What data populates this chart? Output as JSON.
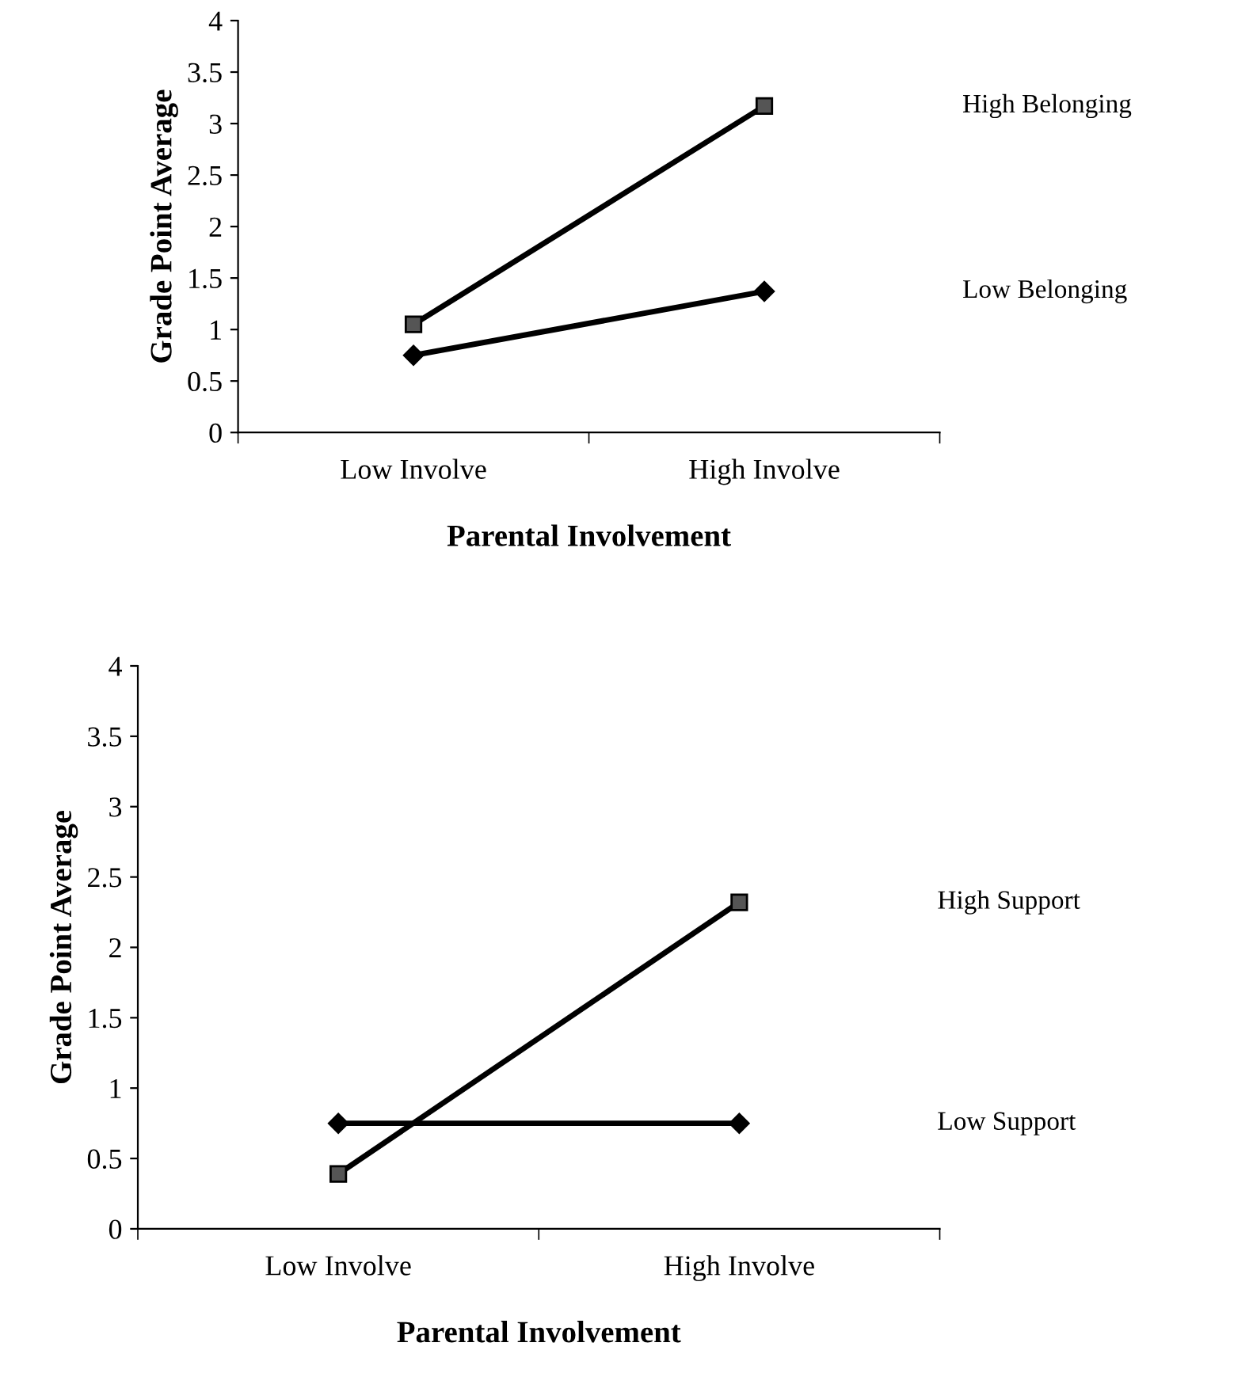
{
  "chart_data": [
    {
      "type": "line",
      "xlabel": "Parental Involvement",
      "ylabel": "Grade Point Average",
      "categories": [
        "Low Involve",
        "High Involve"
      ],
      "ylim": [
        0,
        4
      ],
      "yticks": [
        0,
        0.5,
        1,
        1.5,
        2,
        2.5,
        3,
        3.5,
        4
      ],
      "grid": false,
      "legend": false,
      "series": [
        {
          "name": "High Belonging",
          "color": "#000000",
          "marker": "square",
          "values": [
            1.05,
            3.17
          ]
        },
        {
          "name": "Low Belonging",
          "color": "#000000",
          "marker": "diamond",
          "values": [
            0.75,
            1.37
          ]
        }
      ]
    },
    {
      "type": "line",
      "xlabel": "Parental Involvement",
      "ylabel": "Grade Point Average",
      "categories": [
        "Low Involve",
        "High Involve"
      ],
      "ylim": [
        0,
        4
      ],
      "yticks": [
        0,
        0.5,
        1,
        1.5,
        2,
        2.5,
        3,
        3.5,
        4
      ],
      "grid": false,
      "legend": false,
      "series": [
        {
          "name": "High Support",
          "color": "#000000",
          "marker": "square",
          "values": [
            0.39,
            2.32
          ]
        },
        {
          "name": "Low Support",
          "color": "#000000",
          "marker": "diamond",
          "values": [
            0.75,
            0.75
          ]
        }
      ]
    }
  ]
}
